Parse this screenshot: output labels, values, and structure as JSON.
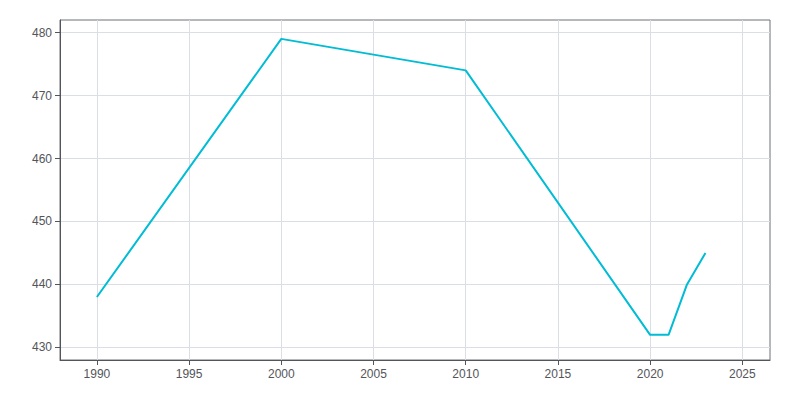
{
  "chart_data": {
    "type": "line",
    "x": [
      1990,
      2000,
      2010,
      2020,
      2021,
      2022,
      2023
    ],
    "values": [
      438,
      479,
      474,
      432,
      432,
      440,
      445
    ],
    "color": "#00bcd4",
    "xlim": [
      1988,
      2026.5
    ],
    "ylim": [
      428,
      482
    ],
    "xticks": [
      1990,
      1995,
      2000,
      2005,
      2010,
      2015,
      2020,
      2025
    ],
    "yticks": [
      430,
      440,
      450,
      460,
      470,
      480
    ],
    "grid": true
  }
}
